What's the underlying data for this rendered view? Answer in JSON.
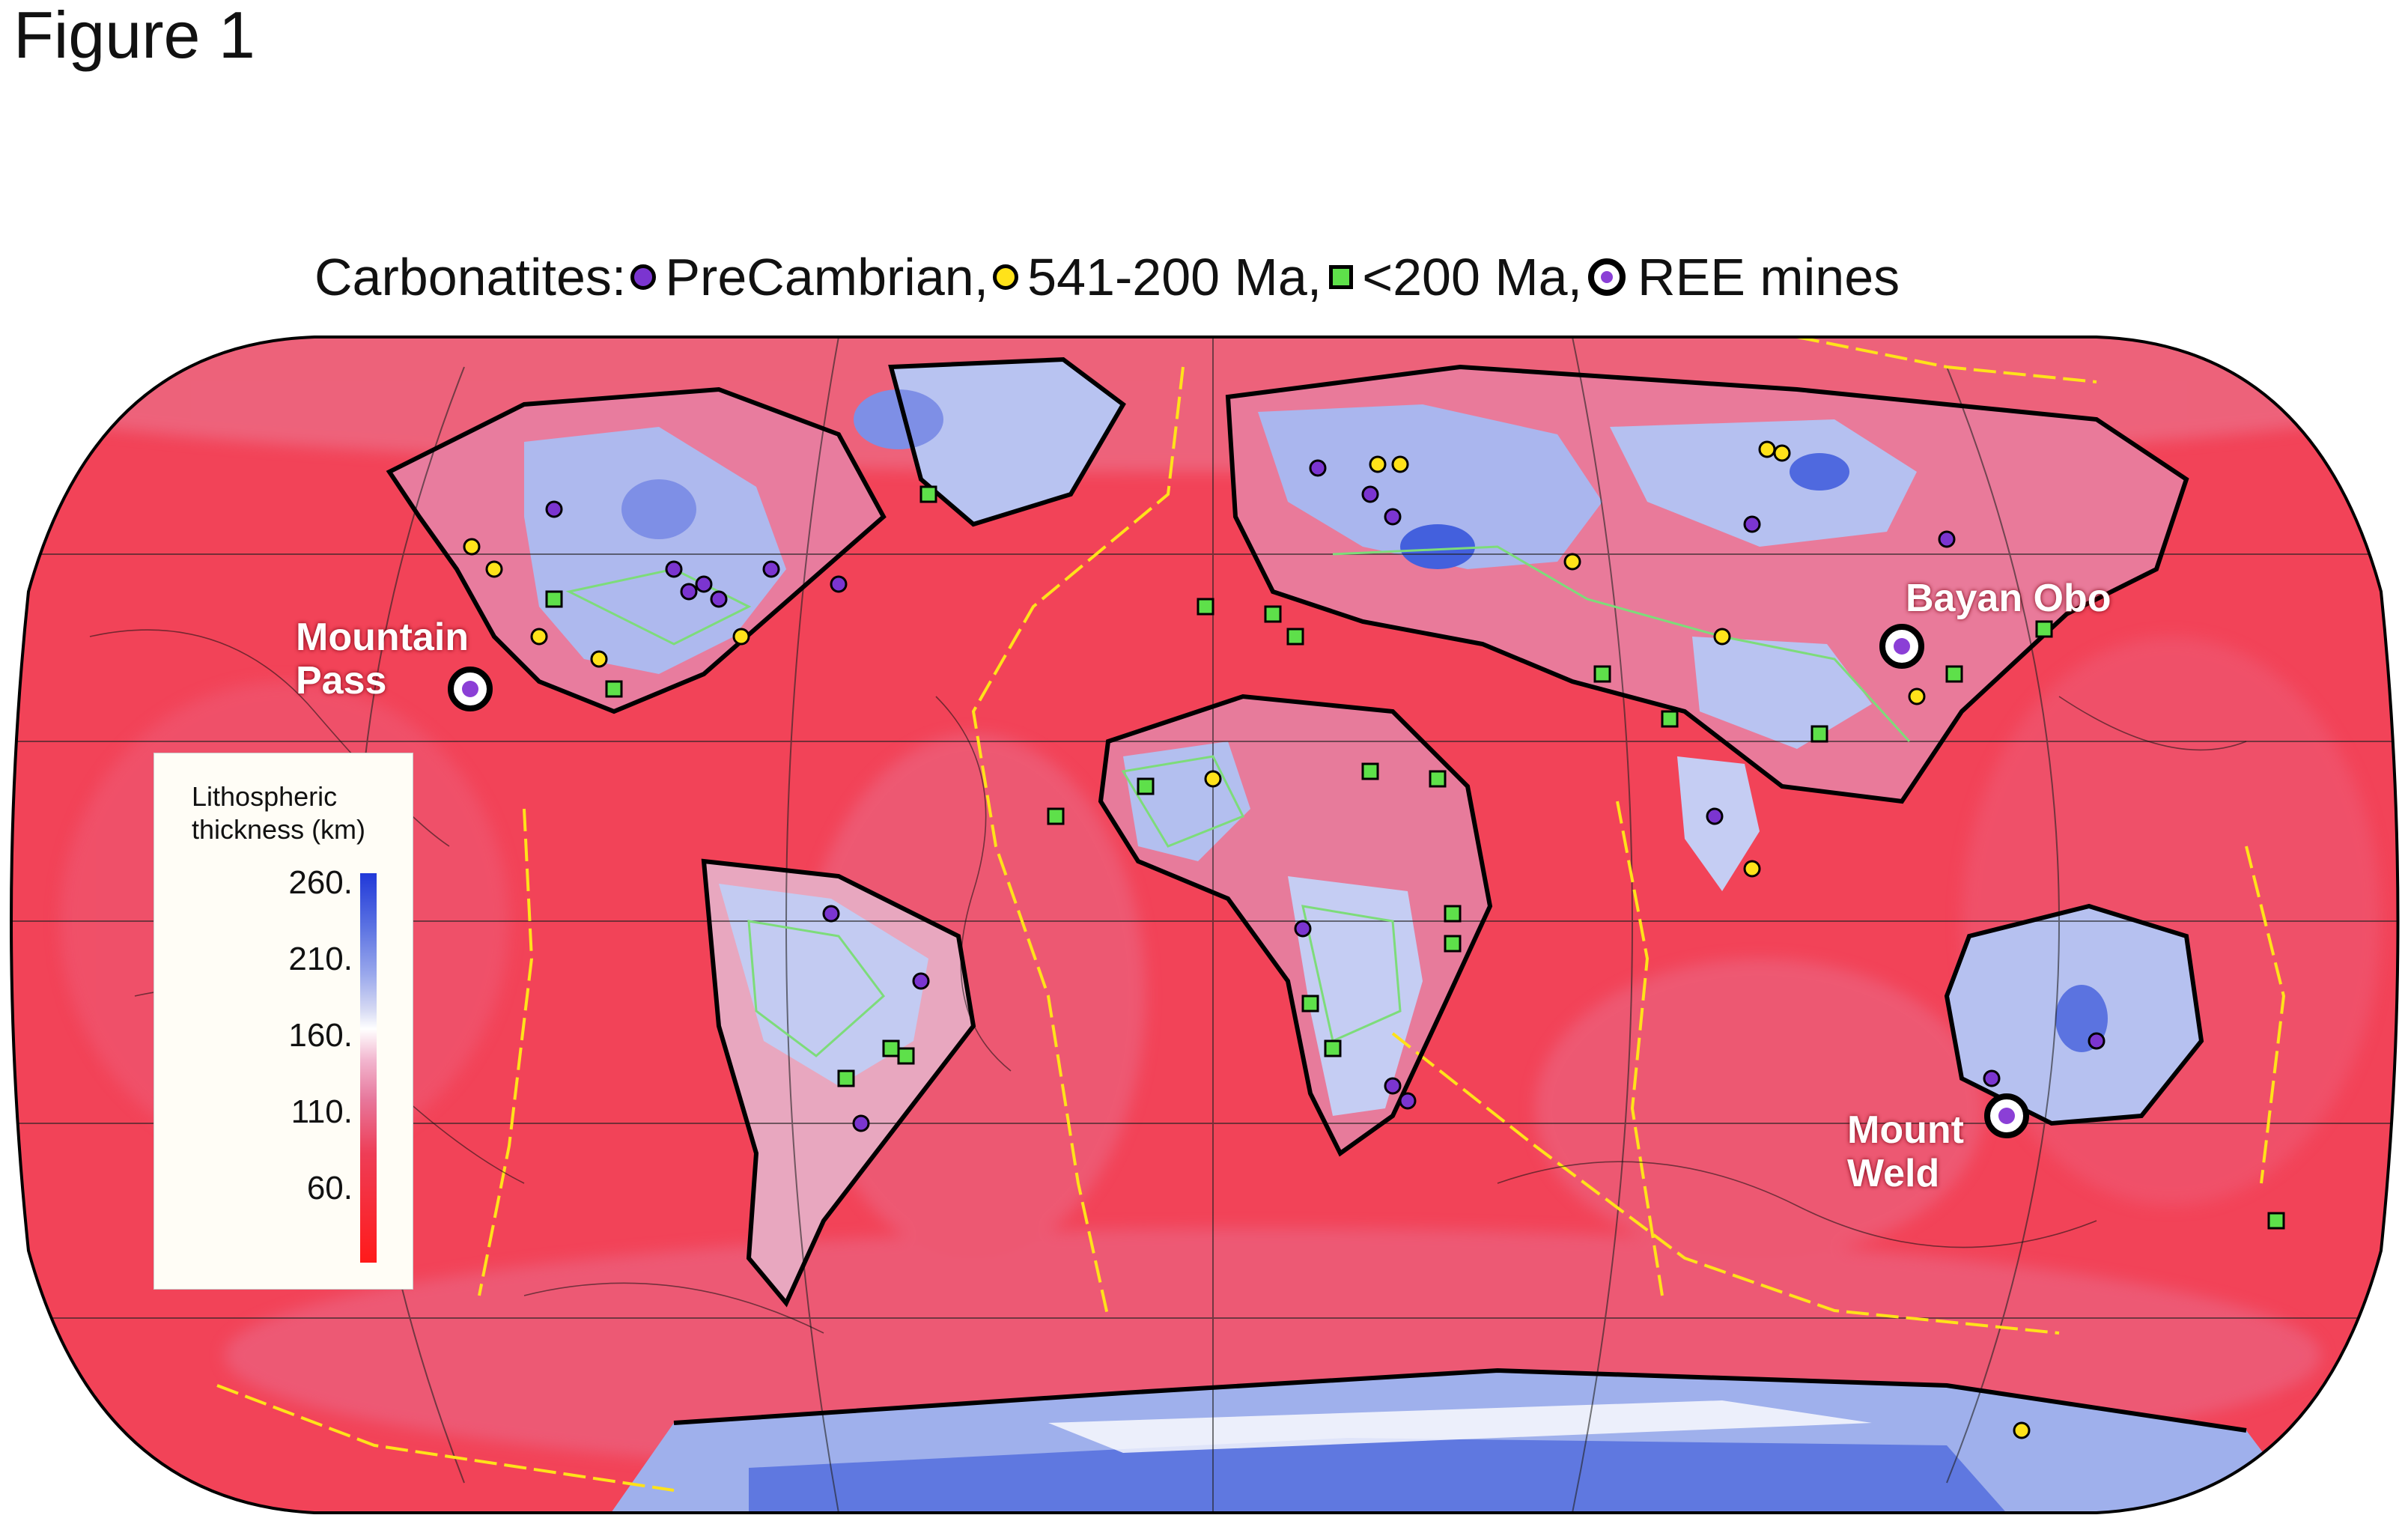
{
  "figure_label": "Figure 1",
  "title": {
    "prefix": "Carbonatites:",
    "items": [
      {
        "label": "PreCambrian,",
        "color": "#7b35d0"
      },
      {
        "label": "541-200 Ma,",
        "color": "#ffe21a"
      },
      {
        "label": "<200 Ma,",
        "color": "#5ee04a"
      },
      {
        "label": "REE mines",
        "color": "#8b3fd6"
      }
    ]
  },
  "map": {
    "projection": "Robinson",
    "colors": {
      "thin": "#ff1a1a",
      "mid": "#e96c8c",
      "white": "#ffffff",
      "thick": "#4360dd",
      "plate_boundary": "#ffe21a",
      "craton_outline": "#7ddc7a",
      "coast": "#000000"
    }
  },
  "legend": {
    "title_line1": "Lithospheric",
    "title_line2": "thickness (km)",
    "ticks": [
      "260.",
      "210.",
      "160.",
      "110.",
      "60."
    ]
  },
  "ree_mines": [
    {
      "name_line1": "Mountain",
      "name_line2": "Pass"
    },
    {
      "name_line1": "Bayan Obo",
      "name_line2": ""
    },
    {
      "name_line1": "Mount",
      "name_line2": "Weld"
    }
  ]
}
